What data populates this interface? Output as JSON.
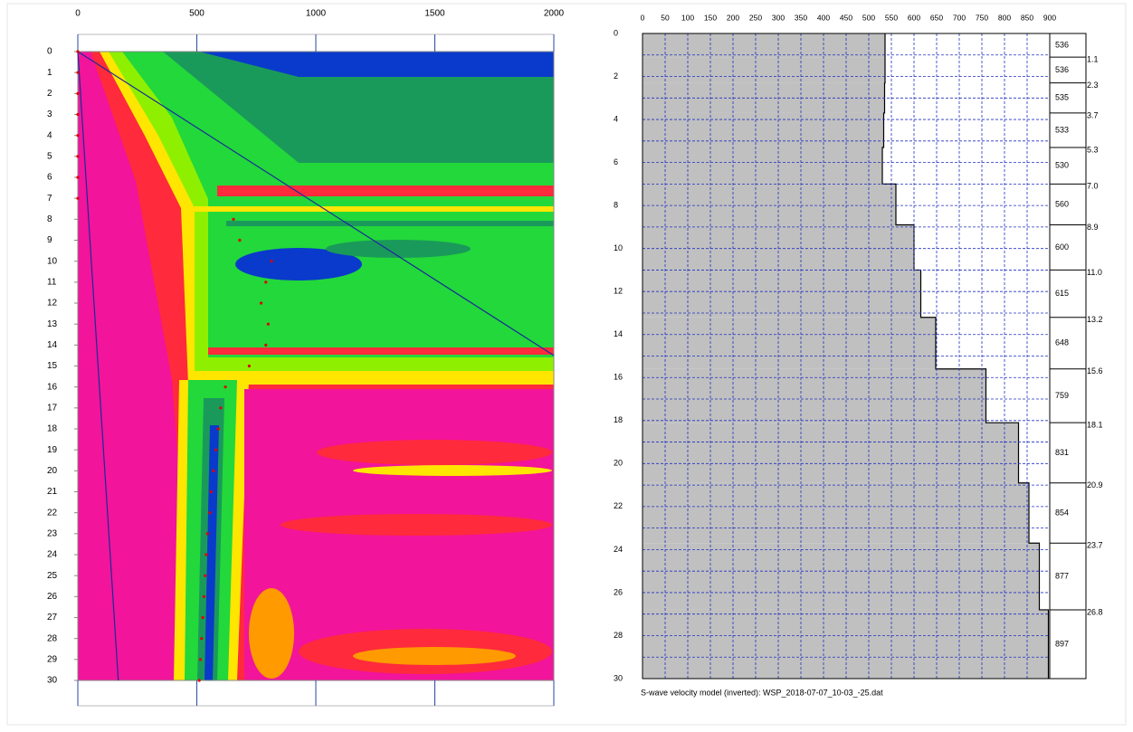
{
  "chart_data": [
    {
      "type": "dispersion",
      "xlim": [
        0,
        2000
      ],
      "xticks": [
        0,
        500,
        1000,
        1500,
        2000
      ],
      "ylim": [
        0,
        30
      ],
      "yticks": [
        0,
        1,
        2,
        3,
        4,
        5,
        6,
        7,
        8,
        9,
        10,
        11,
        12,
        13,
        14,
        15,
        16,
        17,
        18,
        19,
        20,
        21,
        22,
        23,
        24,
        25,
        26,
        27,
        28,
        29,
        30
      ],
      "picks": {
        "color": "#e00000",
        "x": [
          0,
          0,
          0,
          0,
          0,
          0,
          0,
          0,
          654,
          680,
          814,
          790,
          770,
          800,
          790,
          720,
          620,
          600,
          590,
          580,
          570,
          560,
          555,
          545,
          540,
          535,
          530,
          525,
          520,
          515,
          510
        ],
        "y": [
          0,
          1,
          2,
          3,
          4,
          5,
          6,
          7,
          8,
          9,
          10,
          11,
          12,
          13,
          14,
          15,
          16,
          17,
          18,
          19,
          20,
          21,
          22,
          23,
          24,
          25,
          26,
          27,
          28,
          29,
          30
        ]
      },
      "guides": [
        {
          "color": "#1a2a9a",
          "x": [
            0,
            2000
          ],
          "y": [
            0,
            14.5
          ]
        },
        {
          "color": "#1a2a9a",
          "x": [
            0,
            170
          ],
          "y": [
            0,
            30
          ]
        }
      ]
    },
    {
      "type": "velocity-model",
      "caption": "S-wave velocity model (inverted): WSP_2018-07-07_10-03_-25.dat",
      "xlim": [
        0,
        900
      ],
      "xticks": [
        0,
        50,
        100,
        150,
        200,
        250,
        300,
        350,
        400,
        450,
        500,
        550,
        600,
        650,
        700,
        750,
        800,
        850,
        900
      ],
      "ylim": [
        0,
        30
      ],
      "yticks": [
        0,
        2,
        4,
        6,
        8,
        10,
        12,
        14,
        16,
        18,
        20,
        22,
        24,
        26,
        28,
        30
      ],
      "grid_step": 1,
      "grid_color": "#2030c0",
      "fill": "#c0c0c0",
      "velocities": [
        536,
        536,
        535,
        533,
        530,
        560,
        600,
        615,
        648,
        759,
        831,
        854,
        877,
        897
      ],
      "depths": [
        1.1,
        2.3,
        3.7,
        5.3,
        7.0,
        8.9,
        11.0,
        13.2,
        15.6,
        18.1,
        20.9,
        23.7,
        26.8
      ],
      "depth_labels": [
        "1.1",
        "2.3",
        "3.7",
        "5.3",
        "7.0",
        "8.9",
        "11.0",
        "13.2",
        "15.6",
        "18.1",
        "20.9",
        "23.7",
        "26.8"
      ]
    }
  ]
}
